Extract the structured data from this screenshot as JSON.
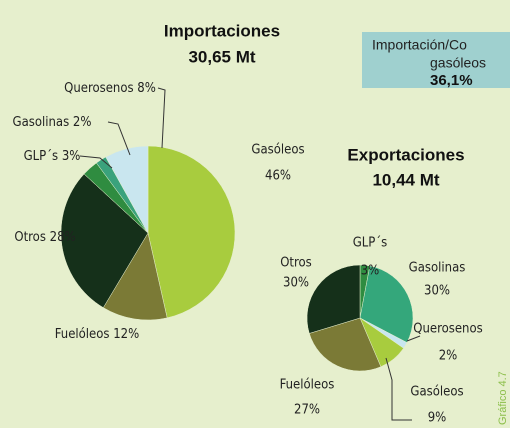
{
  "chart_data": [
    {
      "type": "pie",
      "title": "Importaciones",
      "subtitle": "30,65 Mt",
      "categories": [
        "Gasóleos",
        "Fuelóleos",
        "Otros",
        "GLP´s",
        "Gasolinas",
        "Querosenos"
      ],
      "values": [
        46,
        12,
        28,
        3,
        2,
        8
      ],
      "value_labels": [
        "46%",
        "12%",
        "28%",
        "3%",
        "2%",
        "8%"
      ],
      "colors": [
        "#a8cc3e",
        "#7b7a36",
        "#15301a",
        "#2f8c40",
        "#3aa27c",
        "#c9e6ef"
      ]
    },
    {
      "type": "pie",
      "title": "Exportaciones",
      "subtitle": "10,44 Mt",
      "categories": [
        "GLP´s",
        "Gasolinas",
        "Querosenos",
        "Gasóleos",
        "Fuelóleos",
        "Otros"
      ],
      "values": [
        3,
        30,
        2,
        9,
        27,
        30
      ],
      "value_labels": [
        "3%",
        "30%",
        "2%",
        "9%",
        "27%",
        "30%"
      ],
      "colors": [
        "#2f8c40",
        "#34a77b",
        "#c9e6ef",
        "#a8cc3e",
        "#7b7a36",
        "#15301a"
      ]
    }
  ],
  "annotation": {
    "lines": [
      "Importación/Co",
      "gasóleos",
      "36,1%"
    ]
  },
  "figure_label": "Gráfico 4.7"
}
